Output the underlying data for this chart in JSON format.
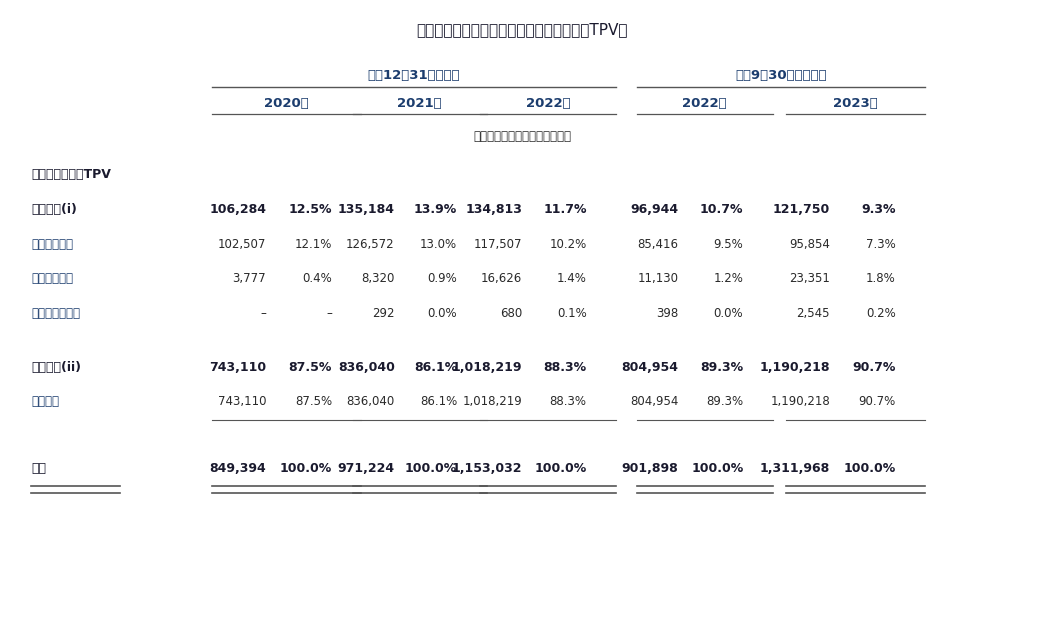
{
  "title": "下表列示於所示期間本公司數字支付服務的TPV：",
  "header_group1": "截至12月31日止年度",
  "header_group2": "截至9月30日止九個月",
  "year_headers": [
    "2020年",
    "2021年",
    "2022年",
    "2022年",
    "2023年"
  ],
  "sub_header": "（人民幣百萬元，百分比除外）",
  "section1_header": "數字支付服務的TPV",
  "rows": [
    {
      "label": "全球支付(i)",
      "label_superscript": true,
      "bold": true,
      "values": [
        "106,284",
        "12.5%",
        "135,184",
        "13.9%",
        "134,813",
        "11.7%",
        "96,944",
        "10.7%",
        "121,750",
        "9.3%"
      ],
      "underline": false,
      "double_underline": false
    },
    {
      "label": "中國跨境商戶",
      "bold": false,
      "values": [
        "102,507",
        "12.1%",
        "126,572",
        "13.0%",
        "117,507",
        "10.2%",
        "85,416",
        "9.5%",
        "95,854",
        "7.3%"
      ],
      "underline": false,
      "double_underline": false
    },
    {
      "label": "中國跨境企業",
      "bold": false,
      "values": [
        "3,777",
        "0.4%",
        "8,320",
        "0.9%",
        "16,626",
        "1.4%",
        "11,130",
        "1.2%",
        "23,351",
        "1.8%"
      ],
      "underline": false,
      "double_underline": false
    },
    {
      "label": "境外商戶及企業",
      "bold": false,
      "values": [
        "–",
        "–",
        "292",
        "0.0%",
        "680",
        "0.1%",
        "398",
        "0.0%",
        "2,545",
        "0.2%"
      ],
      "underline": false,
      "double_underline": false
    },
    {
      "label": "境內支付(ii)",
      "label_superscript": true,
      "bold": true,
      "values": [
        "743,110",
        "87.5%",
        "836,040",
        "86.1%",
        "1,018,219",
        "88.3%",
        "804,954",
        "89.3%",
        "1,190,218",
        "90.7%"
      ],
      "underline": false,
      "double_underline": false
    },
    {
      "label": "境內企業",
      "bold": false,
      "values": [
        "743,110",
        "87.5%",
        "836,040",
        "86.1%",
        "1,018,219",
        "88.3%",
        "804,954",
        "89.3%",
        "1,190,218",
        "90.7%"
      ],
      "underline": true,
      "double_underline": false
    },
    {
      "label": "總計",
      "bold": true,
      "values": [
        "849,394",
        "100.0%",
        "971,224",
        "100.0%",
        "1,153,032",
        "100.0%",
        "901,898",
        "100.0%",
        "1,311,968",
        "100.0%"
      ],
      "underline": false,
      "double_underline": true
    }
  ],
  "colors": {
    "background": "#ffffff",
    "text_dark": "#1a1a2e",
    "text_blue": "#1c3d6e",
    "text_body": "#2a2a2a",
    "line_color": "#555555",
    "header_color": "#1c3d6e",
    "subrow_color": "#1c3d6e"
  },
  "figsize": [
    10.44,
    6.31
  ],
  "dpi": 100
}
